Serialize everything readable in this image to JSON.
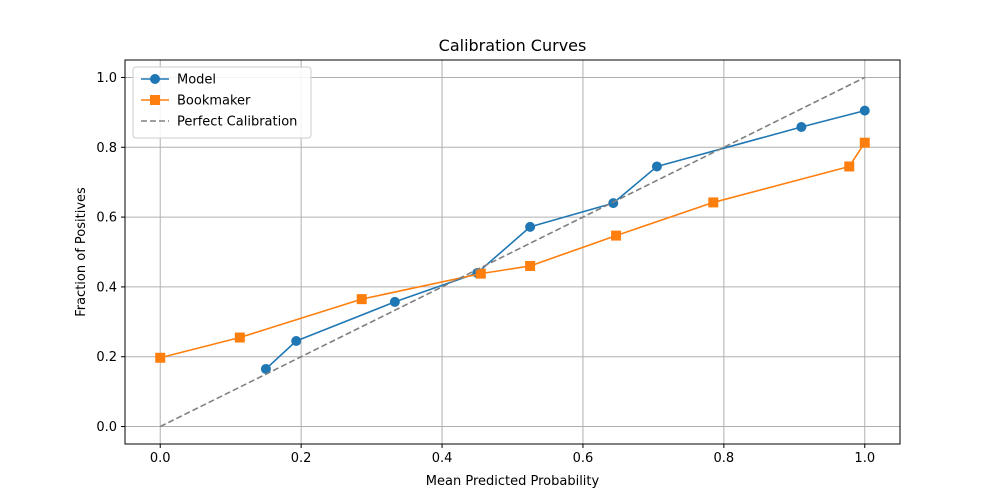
{
  "chart_data": {
    "type": "line",
    "title": "Calibration Curves",
    "xlabel": "Mean Predicted Probability",
    "ylabel": "Fraction of Positives",
    "xlim": [
      -0.05,
      1.05
    ],
    "ylim": [
      -0.05,
      1.05
    ],
    "x_ticks": [
      0.0,
      0.2,
      0.4,
      0.6,
      0.8,
      1.0
    ],
    "y_ticks": [
      0.0,
      0.2,
      0.4,
      0.6,
      0.8,
      1.0
    ],
    "x_tick_labels": [
      "0.0",
      "0.2",
      "0.4",
      "0.6",
      "0.8",
      "1.0"
    ],
    "y_tick_labels": [
      "0.0",
      "0.2",
      "0.4",
      "0.6",
      "0.8",
      "1.0"
    ],
    "grid": true,
    "legend": {
      "position": "top-left"
    },
    "series": [
      {
        "name": "Model",
        "color": "#1f77b4",
        "marker": "circle",
        "style": "solid",
        "x": [
          0.15,
          0.193,
          0.333,
          0.45,
          0.525,
          0.643,
          0.705,
          0.91,
          1.0
        ],
        "y": [
          0.165,
          0.245,
          0.357,
          0.44,
          0.572,
          0.64,
          0.745,
          0.858,
          0.905
        ]
      },
      {
        "name": "Bookmaker",
        "color": "#ff7f0e",
        "marker": "square",
        "style": "solid",
        "x": [
          0.0,
          0.113,
          0.286,
          0.455,
          0.525,
          0.647,
          0.785,
          0.978,
          1.0
        ],
        "y": [
          0.197,
          0.255,
          0.365,
          0.438,
          0.46,
          0.547,
          0.642,
          0.745,
          0.813
        ]
      },
      {
        "name": "Perfect Calibration",
        "color": "#808080",
        "marker": "none",
        "style": "dashed",
        "x": [
          0.0,
          1.0
        ],
        "y": [
          0.0,
          1.0
        ]
      }
    ]
  }
}
